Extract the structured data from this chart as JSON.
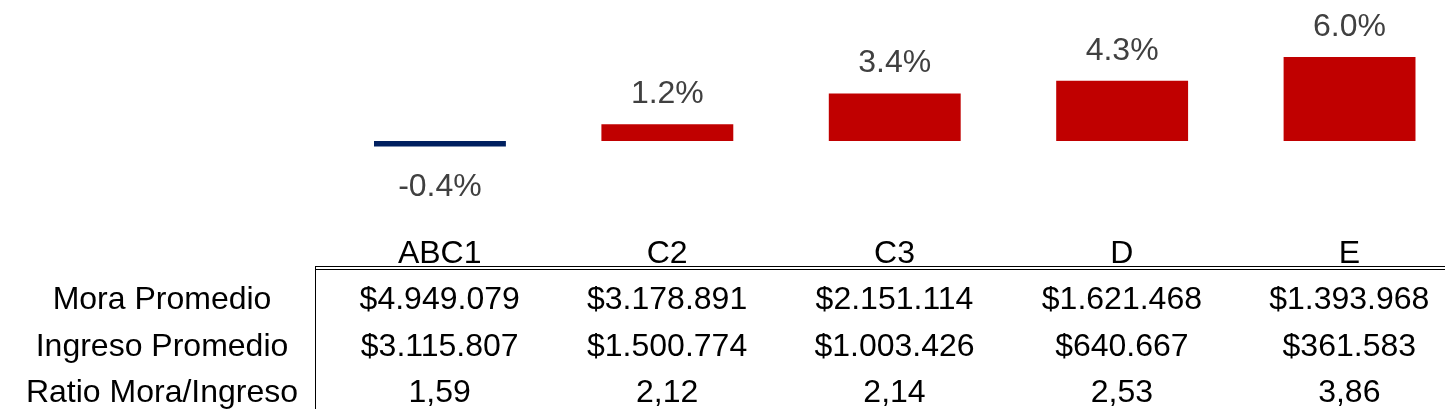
{
  "chart_data": [
    {
      "type": "bar",
      "categories": [
        "ABC1",
        "C2",
        "C3",
        "D",
        "E"
      ],
      "values": [
        -0.4,
        1.2,
        3.4,
        4.3,
        6.0
      ],
      "colors": [
        "#002060",
        "#c00000",
        "#c00000",
        "#c00000",
        "#c00000"
      ],
      "value_labels": [
        "-0.4%",
        "1.2%",
        "3.4%",
        "4.3%",
        "6.0%"
      ]
    },
    {
      "type": "other",
      "y_categories": [
        "Mora Promedio",
        "Ingreso Promedio",
        "Ratio Mora/Ingreso"
      ],
      "cell_labels": [
        [
          "$4.949.079",
          "$3.178.891",
          "$2.151.114",
          "$1.621.468",
          "$1.393.968"
        ],
        [
          "$3.115.807",
          "$1.500.774",
          "$1.003.426",
          "$640.667",
          "$361.583"
        ],
        [
          "1,59",
          "2,12",
          "2,14",
          "2,53",
          "3,86"
        ]
      ]
    }
  ]
}
